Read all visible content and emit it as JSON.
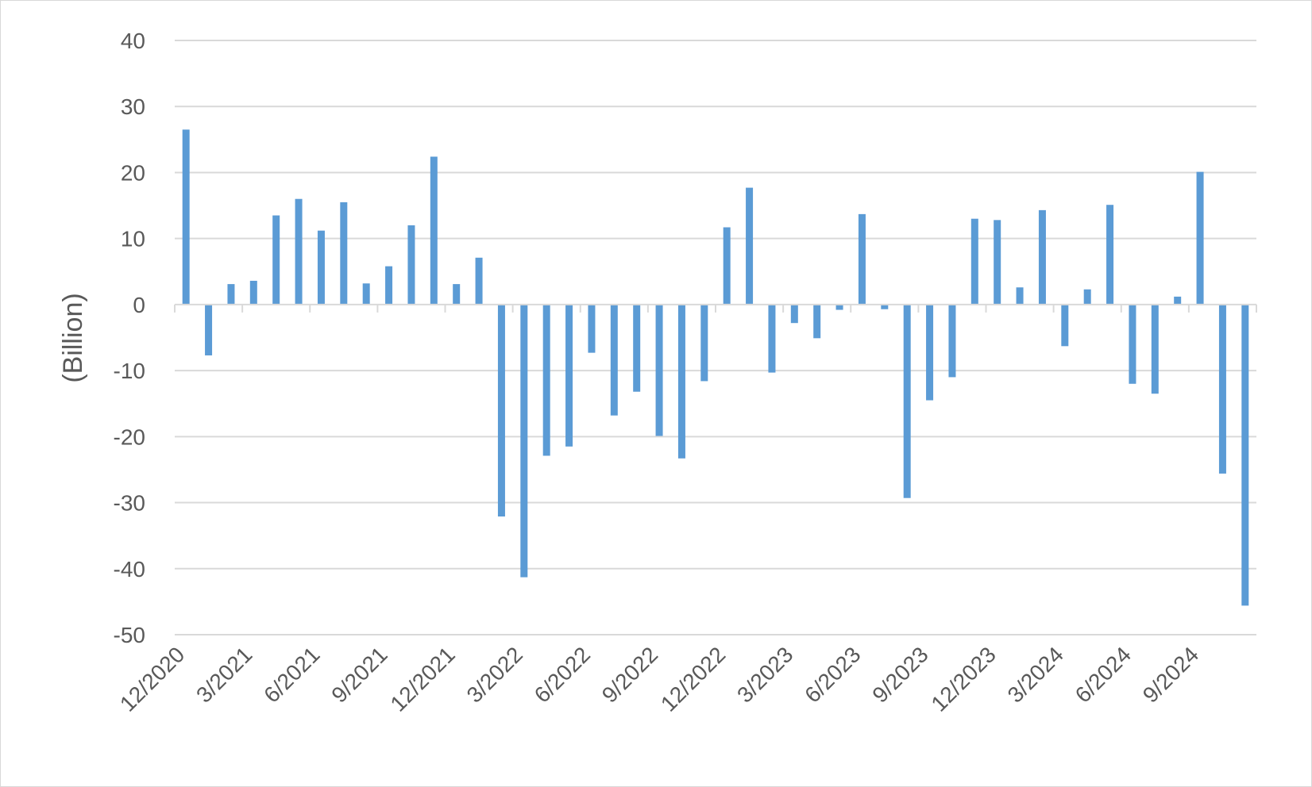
{
  "chart_data": {
    "type": "bar",
    "title": "",
    "xlabel": "",
    "ylabel": "(Billion)",
    "ylim": [
      -50,
      40
    ],
    "yticks": [
      40,
      30,
      20,
      10,
      0,
      -10,
      -20,
      -30,
      -40,
      -50
    ],
    "ytick_labels": [
      "40",
      "30",
      "20",
      "10",
      "0",
      "-10",
      "-20",
      "-30",
      "-40",
      "-50"
    ],
    "xtick_labels": [
      "12/2020",
      "3/2021",
      "6/2021",
      "9/2021",
      "12/2021",
      "3/2022",
      "6/2022",
      "9/2022",
      "12/2022",
      "3/2023",
      "6/2023",
      "9/2023",
      "12/2023",
      "3/2024",
      "6/2024",
      "9/2024"
    ],
    "label_every": 3,
    "grid": true,
    "legend": "none",
    "bar_color": "#5b9bd5",
    "grid_color": "#d9d9d9",
    "text_color": "#595959",
    "categories": [
      "12/2020",
      "1/2021",
      "2/2021",
      "3/2021",
      "4/2021",
      "5/2021",
      "6/2021",
      "7/2021",
      "8/2021",
      "9/2021",
      "10/2021",
      "11/2021",
      "12/2021",
      "1/2022",
      "2/2022",
      "3/2022",
      "4/2022",
      "5/2022",
      "6/2022",
      "7/2022",
      "8/2022",
      "9/2022",
      "10/2022",
      "11/2022",
      "12/2022",
      "1/2023",
      "2/2023",
      "3/2023",
      "4/2023",
      "5/2023",
      "6/2023",
      "7/2023",
      "8/2023",
      "9/2023",
      "10/2023",
      "11/2023",
      "12/2023",
      "1/2024",
      "2/2024",
      "3/2024",
      "4/2024",
      "5/2024",
      "6/2024",
      "7/2024",
      "8/2024",
      "9/2024",
      "10/2024",
      "11/2024"
    ],
    "values": [
      26.5,
      -7.7,
      3.1,
      3.6,
      13.5,
      16.0,
      11.2,
      15.5,
      3.2,
      5.8,
      12.0,
      22.4,
      3.1,
      7.1,
      -32.1,
      -41.3,
      -22.9,
      -21.5,
      -7.3,
      -16.8,
      -13.2,
      -19.9,
      -23.3,
      -11.6,
      11.7,
      17.7,
      -10.3,
      -2.8,
      -5.1,
      -0.8,
      13.7,
      -0.7,
      -29.3,
      -14.5,
      -11.0,
      13.0,
      12.8,
      2.6,
      14.3,
      -6.3,
      2.3,
      15.1,
      -12.0,
      -13.5,
      1.2,
      20.1,
      -25.6,
      -45.6
    ]
  }
}
